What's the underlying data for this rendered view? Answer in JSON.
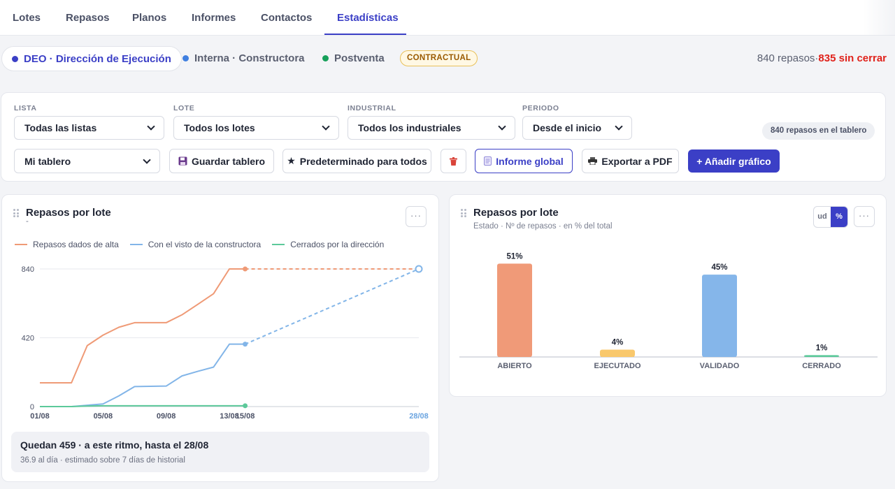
{
  "tabs": [
    "Lotes",
    "Repasos",
    "Planos",
    "Informes",
    "Contactos",
    "Estadísticas"
  ],
  "projects": {
    "deo": {
      "label": "DEO · Dirección de Ejecución",
      "color": "#3b3fc6"
    },
    "interna": {
      "label": "Interna · Constructora",
      "color": "#3f7fe0"
    },
    "postventa": {
      "label": "Postventa",
      "color": "#16a05a"
    },
    "contract_badge": "CONTRACTUAL"
  },
  "summary": {
    "count": "840 repasos",
    "separator": "·",
    "open": "835 sin cerrar"
  },
  "filters": {
    "lista": {
      "label": "LISTA",
      "value": "Todas las listas"
    },
    "lote": {
      "label": "LOTE",
      "value": "Todos los lotes"
    },
    "industrial": {
      "label": "INDUSTRIAL",
      "value": "Todos los industriales"
    },
    "periodo": {
      "label": "PERIODO",
      "value": "Desde el inicio"
    },
    "tablero_badge": "840 repasos en el tablero"
  },
  "toolbar": {
    "board": "Mi tablero",
    "save": "Guardar tablero",
    "default": "Predeterminado para todos",
    "report": "Informe global",
    "pdf": "Exportar a PDF",
    "add": "+ Añadir gráfico"
  },
  "card_left": {
    "title": "Repasos por lote",
    "subtitle": "-",
    "menu": "···",
    "forecast_title": "Quedan 459 · a este ritmo, hasta el 28/08",
    "forecast_sub": "36.9 al día · estimado sobre 7 días de historial"
  },
  "card_right": {
    "title": "Repasos por lote",
    "subtitle": "Estado · Nº de repasos · en % del total",
    "toggle_ud": "ud",
    "toggle_pct": "%",
    "menu": "···"
  },
  "chart_data": [
    {
      "type": "line",
      "x_ticks": [
        "01/08",
        "05/08",
        "09/08",
        "13/08",
        "15/08",
        "28/08"
      ],
      "ylim": [
        0,
        840
      ],
      "y_ticks": [
        0,
        420,
        840
      ],
      "grid": true,
      "legend": "top-left",
      "series": [
        {
          "name": "Repasos dados de alta",
          "color": "#ef9a76",
          "x": [
            1,
            3,
            4,
            5,
            6,
            7,
            9,
            10,
            11,
            12,
            13,
            14
          ],
          "values": [
            145,
            145,
            372,
            436,
            484,
            512,
            512,
            560,
            624,
            689,
            840,
            840
          ],
          "forecast": [
            [
              14,
              840
            ],
            [
              25,
              840
            ]
          ]
        },
        {
          "name": "Con el visto de la constructora",
          "color": "#82b5e8",
          "x": [
            1,
            3,
            4,
            5,
            6,
            7,
            9,
            10,
            11,
            12,
            13,
            14
          ],
          "values": [
            0,
            0,
            8,
            16,
            65,
            122,
            125,
            187,
            215,
            241,
            381,
            381
          ],
          "forecast": [
            [
              14,
              381
            ],
            [
              25,
              840
            ]
          ]
        },
        {
          "name": "Cerrados por la dirección",
          "color": "#5cc99a",
          "x": [
            1,
            3,
            4,
            5,
            6,
            7,
            9,
            10,
            11,
            12,
            13,
            14
          ],
          "values": [
            0,
            0,
            3,
            5,
            5,
            5,
            5,
            5,
            5,
            5,
            5,
            5
          ],
          "forecast": []
        }
      ]
    },
    {
      "type": "bar",
      "categories": [
        "ABIERTO",
        "EJECUTADO",
        "VALIDADO",
        "CERRADO"
      ],
      "values": [
        51,
        4,
        45,
        1
      ],
      "labels": [
        "51%",
        "4%",
        "45%",
        "1%"
      ],
      "colors": [
        "#f09a78",
        "#f9c86c",
        "#85b6ea",
        "#5cc99a"
      ]
    }
  ]
}
